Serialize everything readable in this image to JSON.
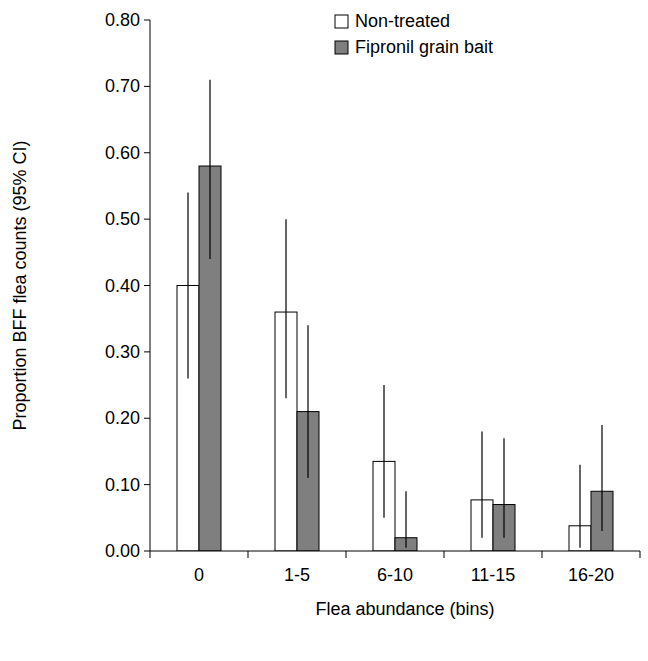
{
  "chart_data": {
    "type": "bar",
    "x_label": "Flea abundance (bins)",
    "y_label": "Proportion  BFF flea counts (95% CI)",
    "categories": [
      "0",
      "1-5",
      "6-10",
      "11-15",
      "16-20"
    ],
    "series": [
      {
        "name": "Non-treated",
        "color": "#ffffff",
        "values": [
          0.4,
          0.36,
          0.135,
          0.077,
          0.038
        ],
        "ci_lower": [
          0.26,
          0.23,
          0.05,
          0.02,
          0.005
        ],
        "ci_upper": [
          0.54,
          0.5,
          0.25,
          0.18,
          0.13
        ]
      },
      {
        "name": "Fipronil grain bait",
        "color": "#7f7f7f",
        "values": [
          0.58,
          0.21,
          0.02,
          0.07,
          0.09
        ],
        "ci_lower": [
          0.44,
          0.11,
          0.005,
          0.02,
          0.03
        ],
        "ci_upper": [
          0.71,
          0.34,
          0.09,
          0.17,
          0.19
        ]
      }
    ],
    "ylim": [
      0,
      0.8
    ],
    "yticks": [
      {
        "value": 0,
        "label": "0.00"
      },
      {
        "value": 0.1,
        "label": "0.10"
      },
      {
        "value": 0.2,
        "label": "0.20"
      },
      {
        "value": 0.3,
        "label": "0.30"
      },
      {
        "value": 0.4,
        "label": "0.40"
      },
      {
        "value": 0.5,
        "label": "0.50"
      },
      {
        "value": 0.6,
        "label": "0.60"
      },
      {
        "value": 0.7,
        "label": "0.70"
      },
      {
        "value": 0.8,
        "label": "0.80"
      }
    ],
    "grid": false,
    "legend": "top-right"
  }
}
